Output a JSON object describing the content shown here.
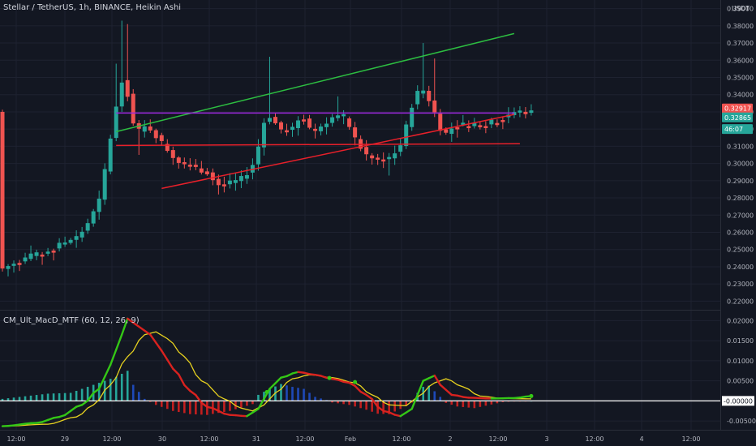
{
  "header": {
    "title": "Stellar / TetherUS, 1h, BINANCE, Heikin Ashi",
    "currency": "USDT"
  },
  "indicator": {
    "title": "CM_Ult_MacD_MTF (60, 12, 26, 9)"
  },
  "colors": {
    "background": "#131722",
    "grid": "#1e2230",
    "bull": "#26a69a",
    "bear": "#ef5350",
    "trend_green": "#2dbd41",
    "trend_red": "#e8202a",
    "resistance_purple": "#9c27dd",
    "macd_green": "#34c716",
    "macd_red": "#d9221f",
    "signal_yellow": "#e8d21f",
    "hist_up": "#1e49b8",
    "hist_bull_light": "#26a69a",
    "hist_down": "#c21f1f",
    "zero_line": "#ffffff"
  },
  "chart_data": [
    {
      "type": "candlestick",
      "title": "Stellar / TetherUS, 1h, BINANCE, Heikin Ashi",
      "ylim": [
        0.215,
        0.395
      ],
      "y_ticks": [
        "0.39000",
        "0.38000",
        "0.37000",
        "0.36000",
        "0.35000",
        "0.34000",
        "0.33000",
        "0.32000",
        "0.31000",
        "0.30000",
        "0.29000",
        "0.28000",
        "0.27000",
        "0.26000",
        "0.25000",
        "0.24000",
        "0.23000",
        "0.22000"
      ],
      "x_ticks": [
        "12:00",
        "29",
        "12:00",
        "30",
        "12:00",
        "31",
        "12:00",
        "Feb",
        "12:00",
        "2",
        "12:00",
        "3",
        "12:00",
        "4",
        "12:00"
      ],
      "price_labels": [
        {
          "value": 0.32917,
          "label": "0.32917",
          "color": "#ef5350"
        },
        {
          "value": 0.32865,
          "label": "0.32865",
          "color": "#26a69a"
        },
        {
          "value": 0.3252,
          "label": "46:07",
          "color": "#26a69a"
        }
      ],
      "trendlines": [
        {
          "name": "upper channel",
          "color": "#2dbd41",
          "from": [
            20,
            0.3185
          ],
          "to": [
            90,
            0.3755
          ]
        },
        {
          "name": "lower channel",
          "color": "#e8202a",
          "from": [
            28,
            0.2855
          ],
          "to": [
            90,
            0.3285
          ]
        },
        {
          "name": "resistance",
          "color": "#9c27dd",
          "from": [
            20,
            0.3293
          ],
          "to": [
            90,
            0.3293
          ]
        },
        {
          "name": "support",
          "color": "#e8202a",
          "from": [
            20,
            0.3105
          ],
          "to": [
            91,
            0.3115
          ]
        }
      ]
    },
    {
      "type": "line",
      "title": "CM_Ult_MacD_MTF (60, 12, 26, 9)",
      "ylim": [
        -0.0072,
        0.0225
      ],
      "y_ticks": [
        "0.02000",
        "0.01500",
        "0.01000",
        "0.00500",
        "-0.00000",
        "-0.00500"
      ],
      "zero_label": "-0.00000"
    }
  ]
}
